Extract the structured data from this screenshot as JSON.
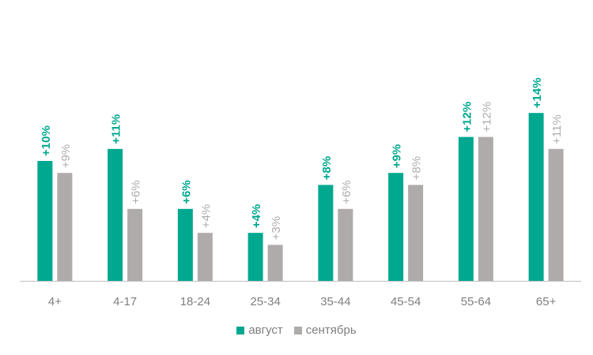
{
  "chart_data": {
    "type": "bar",
    "categories": [
      "4+",
      "4-17",
      "18-24",
      "25-34",
      "35-44",
      "45-54",
      "55-64",
      "65+"
    ],
    "series": [
      {
        "name": "август",
        "color": "#00a88f",
        "values": [
          10,
          11,
          6,
          4,
          8,
          9,
          12,
          14
        ],
        "labels": [
          "+10%",
          "+11%",
          "+6%",
          "+4%",
          "+8%",
          "+9%",
          "+12%",
          "+14%"
        ]
      },
      {
        "name": "сентябрь",
        "color": "#afabab",
        "values": [
          9,
          6,
          4,
          3,
          6,
          8,
          12,
          11
        ],
        "labels": [
          "+9%",
          "+6%",
          "+4%",
          "+3%",
          "+6%",
          "+8%",
          "+12%",
          "+11%"
        ]
      }
    ],
    "title": "",
    "xlabel": "",
    "ylabel": "",
    "ylim": [
      0,
      15
    ],
    "grid": false,
    "legend": "bottom",
    "tick_color": "#7f7f7f",
    "axis_color": "#bfbfbf"
  }
}
